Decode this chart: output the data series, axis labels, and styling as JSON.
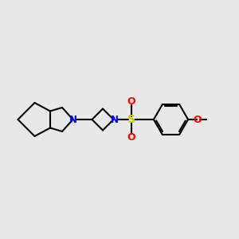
{
  "bg_color": "#e8e8e8",
  "bond_color": "#000000",
  "N_color": "#0000ff",
  "S_color": "#cccc00",
  "O_color": "#ff0000",
  "line_width": 1.5,
  "figsize": [
    3.0,
    3.0
  ],
  "dpi": 100,
  "xlim": [
    0,
    10
  ],
  "ylim": [
    2.5,
    7.5
  ]
}
